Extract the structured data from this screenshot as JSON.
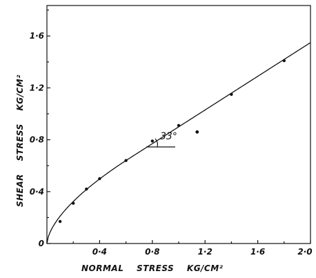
{
  "chart_data": {
    "type": "line",
    "title": "",
    "xlabel": "NORMAL    STRESS    KG/CM²",
    "ylabel": "SHEAR    STRESS    KG/CM²",
    "xlim": [
      0,
      2.0
    ],
    "ylim": [
      0,
      1.8
    ],
    "x_ticks": [
      0,
      0.4,
      0.8,
      1.2,
      1.6,
      2.0
    ],
    "x_tick_labels": [
      "",
      "0·4",
      "0·8",
      "1·2",
      "1·6",
      "2·0"
    ],
    "y_ticks": [
      0,
      0.4,
      0.8,
      1.2,
      1.6
    ],
    "y_tick_labels": [
      "0",
      "0·4",
      "0·8",
      "1·2",
      "1·6"
    ],
    "grid": false,
    "points": {
      "x": [
        0.1,
        0.2,
        0.3,
        0.4,
        0.6,
        0.8,
        1.0,
        1.4,
        1.8
      ],
      "y": [
        0.17,
        0.31,
        0.42,
        0.5,
        0.64,
        0.79,
        0.91,
        1.15,
        1.41
      ]
    },
    "annotation": {
      "text": "33°",
      "x": 1.14,
      "y": 0.86
    }
  }
}
